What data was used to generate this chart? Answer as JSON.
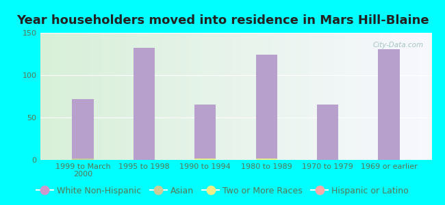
{
  "title": "Year householders moved into residence in Mars Hill-Blaine",
  "categories": [
    "1999 to March\n2000",
    "1995 to 1998",
    "1990 to 1994",
    "1980 to 1989",
    "1970 to 1979",
    "1969 or earlier"
  ],
  "series": {
    "White Non-Hispanic": [
      72,
      132,
      65,
      124,
      65,
      131
    ],
    "Asian": [
      2,
      0,
      0,
      0,
      0,
      0
    ],
    "Two or More Races": [
      0,
      0,
      2,
      2,
      0,
      0
    ],
    "Hispanic or Latino": [
      0,
      0,
      0,
      0,
      0,
      0
    ]
  },
  "colors": {
    "White Non-Hispanic": "#b8a0cc",
    "Asian": "#cccc99",
    "Two or More Races": "#eeee88",
    "Hispanic or Latino": "#ffaaaa"
  },
  "legend_colors": {
    "White Non-Hispanic": "#cc99cc",
    "Asian": "#cccc99",
    "Two or More Races": "#eeee88",
    "Hispanic or Latino": "#ffaaaa"
  },
  "ylim": [
    0,
    150
  ],
  "yticks": [
    0,
    50,
    100,
    150
  ],
  "bg_outer": "#00ffff",
  "grad_color_left": "#d8f0d8",
  "grad_color_right": "#f0f0f8",
  "bar_width": 0.35,
  "title_fontsize": 13,
  "tick_fontsize": 8,
  "legend_fontsize": 9,
  "tick_color": "#557755",
  "watermark": "City-Data.com"
}
